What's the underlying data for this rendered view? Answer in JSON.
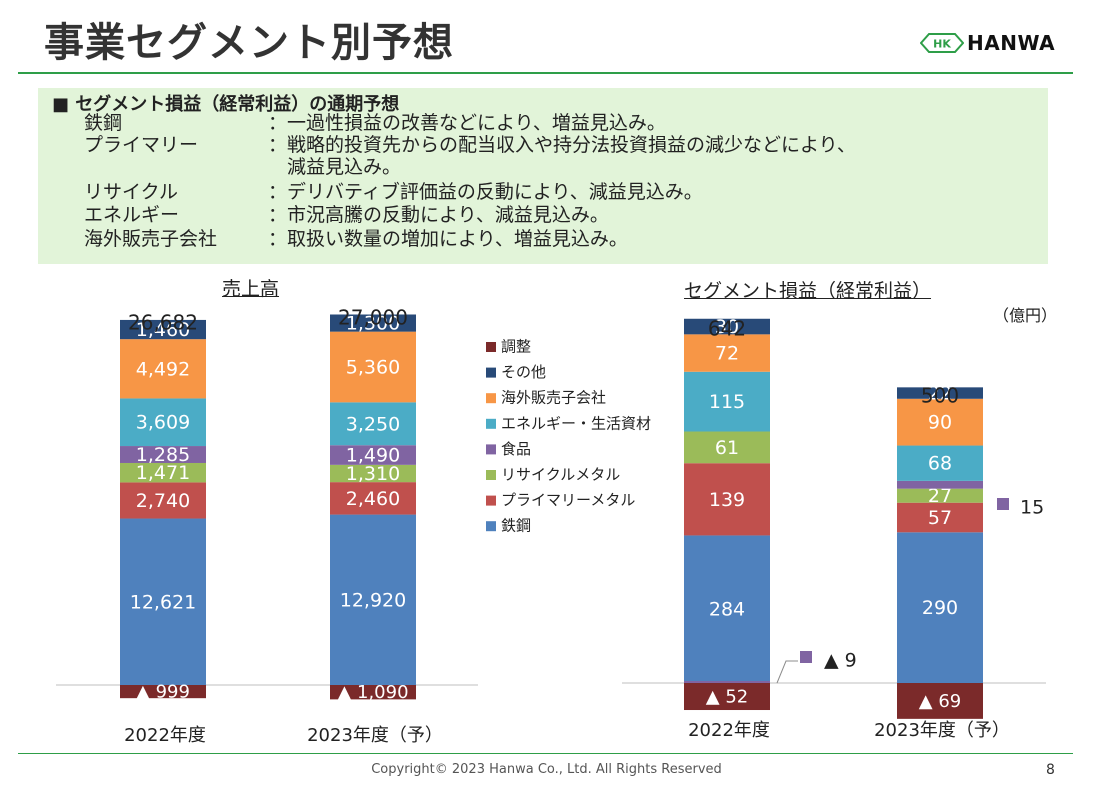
{
  "header": {
    "title": "事業セグメント別予想",
    "logo_text": "HANWA",
    "logo_mark": "HK"
  },
  "notes": {
    "heading": "■ セグメント損益（経常利益）の通期予想",
    "rows": [
      {
        "label": "鉄鋼",
        "text": "：一過性損益の改善などにより、増益見込み。"
      },
      {
        "label": "プライマリー",
        "text": "：戦略的投資先からの配当収入や持分法投資損益の減少などにより、"
      },
      {
        "label": "",
        "text": "　減益見込み。"
      },
      {
        "label": "リサイクル",
        "text": "：デリバティブ評価益の反動により、減益見込み。"
      },
      {
        "label": "エネルギー",
        "text": "：市況高騰の反動により、減益見込み。"
      },
      {
        "label": "海外販売子会社",
        "text": "：取扱い数量の増加により、増益見込み。"
      }
    ]
  },
  "unit": "（億円）",
  "footer": {
    "copyright": "Copyright© 2023 Hanwa Co., Ltd. All Rights Reserved",
    "page": "8"
  },
  "legend": [
    {
      "name": "調整",
      "color": "#7b2a2a"
    },
    {
      "name": "その他",
      "color": "#284a78"
    },
    {
      "name": "海外販売子会社",
      "color": "#f79646"
    },
    {
      "name": "エネルギー・生活資材",
      "color": "#4bacc6"
    },
    {
      "name": "食品",
      "color": "#8064a2"
    },
    {
      "name": "リサイクルメタル",
      "color": "#9bbb59"
    },
    {
      "name": "プライマリーメタル",
      "color": "#c0504d"
    },
    {
      "name": "鉄鋼",
      "color": "#4f81bd"
    }
  ],
  "chart_data": [
    {
      "type": "bar",
      "stacked": true,
      "title": "売上高",
      "categories": [
        "2022年度",
        "2023年度（予）"
      ],
      "totals": [
        "26,682",
        "27,000"
      ],
      "series": [
        {
          "name": "鉄鋼",
          "values": [
            12621,
            12920
          ],
          "labels": [
            "12,621",
            "12,920"
          ]
        },
        {
          "name": "プライマリーメタル",
          "values": [
            2740,
            2460
          ],
          "labels": [
            "2,740",
            "2,460"
          ]
        },
        {
          "name": "リサイクルメタル",
          "values": [
            1471,
            1310
          ],
          "labels": [
            "1,471",
            "1,310"
          ]
        },
        {
          "name": "食品",
          "values": [
            1285,
            1490
          ],
          "labels": [
            "1,285",
            "1,490"
          ]
        },
        {
          "name": "エネルギー・生活資材",
          "values": [
            3609,
            3250
          ],
          "labels": [
            "3,609",
            "3,250"
          ]
        },
        {
          "name": "海外販売子会社",
          "values": [
            4492,
            5360
          ],
          "labels": [
            "4,492",
            "5,360"
          ]
        },
        {
          "name": "その他",
          "values": [
            1460,
            1300
          ],
          "labels": [
            "1,460",
            "1,300"
          ]
        },
        {
          "name": "調整",
          "values": [
            -999,
            -1090
          ],
          "labels": [
            "▲ 999",
            "▲ 1,090"
          ]
        }
      ]
    },
    {
      "type": "bar",
      "stacked": true,
      "title": "セグメント損益（経常利益）",
      "categories": [
        "2022年度",
        "2023年度（予）"
      ],
      "totals": [
        "642",
        "500"
      ],
      "series": [
        {
          "name": "鉄鋼",
          "values": [
            284,
            290
          ],
          "labels": [
            "284",
            "290"
          ]
        },
        {
          "name": "プライマリーメタル",
          "values": [
            139,
            57
          ],
          "labels": [
            "139",
            "57"
          ]
        },
        {
          "name": "リサイクルメタル",
          "values": [
            61,
            27
          ],
          "labels": [
            "61",
            "27"
          ]
        },
        {
          "name": "食品",
          "values": [
            -9,
            15
          ],
          "labels": [
            "▲ 9",
            "15"
          ]
        },
        {
          "name": "エネルギー・生活資材",
          "values": [
            115,
            68
          ],
          "labels": [
            "115",
            "68"
          ]
        },
        {
          "name": "海外販売子会社",
          "values": [
            72,
            90
          ],
          "labels": [
            "72",
            "90"
          ]
        },
        {
          "name": "その他",
          "values": [
            30,
            22
          ],
          "labels": [
            "30",
            "22"
          ]
        },
        {
          "name": "調整",
          "values": [
            -52,
            -69
          ],
          "labels": [
            "▲ 52",
            "▲ 69"
          ]
        }
      ]
    }
  ]
}
